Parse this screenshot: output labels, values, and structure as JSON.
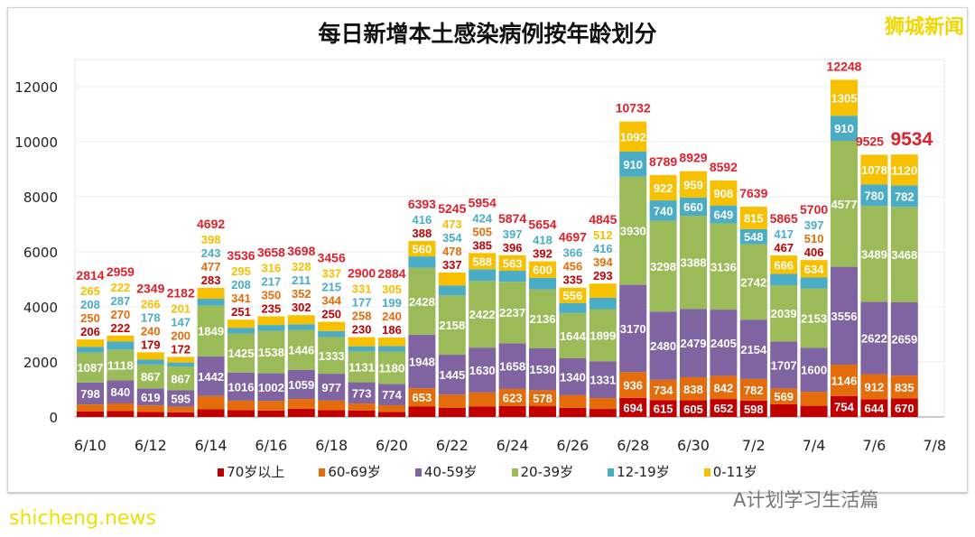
{
  "brand": "狮城新闻",
  "footer": {
    "site": "shicheng.news",
    "wechat": "A计划学习生活篇"
  },
  "chart_data": {
    "type": "bar",
    "stacked": true,
    "title": "每日新增本土感染病例按年龄划分",
    "xlabel": "",
    "ylabel": "",
    "ylim": [
      0,
      12500
    ],
    "yticks": [
      0,
      2000,
      4000,
      6000,
      8000,
      10000,
      12000
    ],
    "xtick_labels": [
      "6/10",
      "6/12",
      "6/14",
      "6/16",
      "6/18",
      "6/20",
      "6/22",
      "6/24",
      "6/26",
      "6/28",
      "6/30",
      "7/2",
      "7/4",
      "7/6",
      "7/8"
    ],
    "grid": true,
    "legend": "bottom",
    "categories": [
      "6/10",
      "6/11",
      "6/12",
      "6/13",
      "6/14",
      "6/15",
      "6/16",
      "6/17",
      "6/18",
      "6/19",
      "6/20",
      "6/21",
      "6/22",
      "6/23",
      "6/24",
      "6/25",
      "6/26",
      "6/27",
      "6/28",
      "6/29",
      "6/30",
      "7/1",
      "7/2",
      "7/3",
      "7/4",
      "7/5",
      "7/6",
      "7/7"
    ],
    "totals": [
      2814,
      2959,
      2349,
      2182,
      4692,
      3536,
      3658,
      3698,
      3456,
      2900,
      2884,
      6393,
      5245,
      5954,
      5874,
      5654,
      4697,
      4845,
      10732,
      8789,
      8929,
      8592,
      7639,
      5865,
      5700,
      12248,
      9525,
      9534
    ],
    "series": [
      {
        "name": "70岁以上",
        "color": "#c00000",
        "values": [
          206,
          222,
          179,
          172,
          283,
          251,
          235,
          302,
          250,
          230,
          186,
          388,
          337,
          385,
          396,
          392,
          335,
          293,
          694,
          615,
          605,
          652,
          598,
          467,
          406,
          754,
          644,
          670
        ]
      },
      {
        "name": "60-69岁",
        "color": "#e46c0a",
        "values": [
          250,
          270,
          240,
          200,
          477,
          341,
          350,
          352,
          344,
          258,
          240,
          653,
          478,
          505,
          623,
          578,
          456,
          394,
          936,
          734,
          838,
          842,
          782,
          569,
          510,
          1146,
          912,
          835
        ]
      },
      {
        "name": "40-59岁",
        "color": "#8064a2",
        "values": [
          798,
          840,
          619,
          595,
          1442,
          1016,
          1002,
          1059,
          977,
          773,
          774,
          1948,
          1445,
          1630,
          1658,
          1530,
          1340,
          1331,
          3170,
          2480,
          2479,
          2405,
          2154,
          1707,
          1600,
          3556,
          2622,
          2659
        ]
      },
      {
        "name": "20-39岁",
        "color": "#9bbb59",
        "values": [
          1087,
          1118,
          867,
          867,
          1849,
          1425,
          1538,
          1446,
          1333,
          1131,
          1180,
          2428,
          2158,
          2422,
          2237,
          2136,
          1644,
          1899,
          3930,
          3298,
          3388,
          3136,
          2742,
          2039,
          2153,
          4577,
          3489,
          3468
        ]
      },
      {
        "name": "12-19岁",
        "color": "#4bacc6",
        "values": [
          208,
          287,
          178,
          147,
          243,
          208,
          217,
          211,
          215,
          177,
          199,
          416,
          354,
          424,
          397,
          418,
          366,
          416,
          910,
          740,
          660,
          649,
          548,
          417,
          397,
          910,
          780,
          782
        ]
      },
      {
        "name": "0-11岁",
        "color": "#f7c000",
        "values": [
          265,
          222,
          266,
          201,
          398,
          295,
          316,
          328,
          337,
          331,
          305,
          560,
          473,
          588,
          563,
          600,
          556,
          512,
          1092,
          922,
          959,
          908,
          815,
          666,
          634,
          1305,
          1078,
          1120
        ]
      }
    ]
  }
}
